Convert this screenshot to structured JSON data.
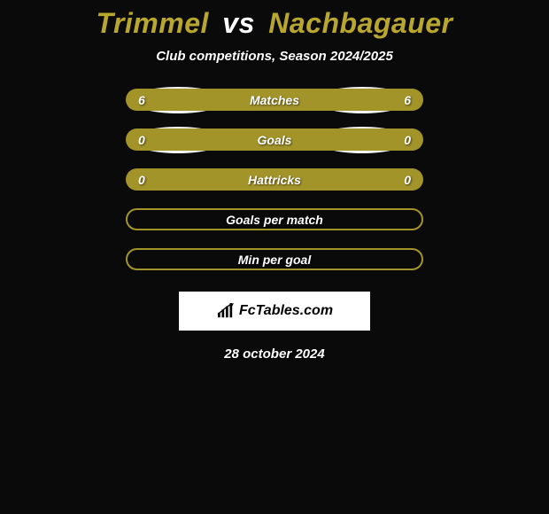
{
  "title": {
    "player1": "Trimmel",
    "vs": "vs",
    "player2": "Nachbagauer",
    "player1_color": "#b8a62f",
    "player2_color": "#b8a62f",
    "vs_color": "#ffffff"
  },
  "subtitle": "Club competitions, Season 2024/2025",
  "colors": {
    "bar_fill": "#a3942a",
    "bar_outline": "#a3942a",
    "background": "#0a0a0a",
    "ellipse": "#f5f5f5",
    "text": "#ffffff"
  },
  "rows": [
    {
      "label": "Matches",
      "left": "6",
      "right": "6",
      "style": "filled",
      "show_ellipses": true
    },
    {
      "label": "Goals",
      "left": "0",
      "right": "0",
      "style": "filled",
      "show_ellipses": true
    },
    {
      "label": "Hattricks",
      "left": "0",
      "right": "0",
      "style": "filled",
      "show_ellipses": false
    },
    {
      "label": "Goals per match",
      "left": "",
      "right": "",
      "style": "outline",
      "show_ellipses": false
    },
    {
      "label": "Min per goal",
      "left": "",
      "right": "",
      "style": "outline",
      "show_ellipses": false
    }
  ],
  "brand": "FcTables.com",
  "date": "28 october 2024"
}
